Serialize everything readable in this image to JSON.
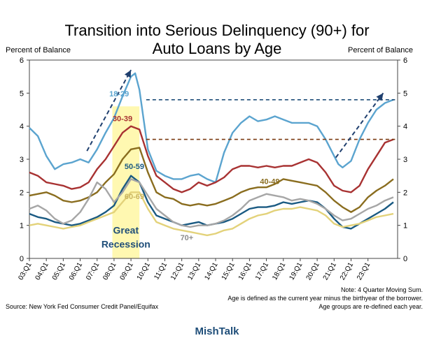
{
  "chart_data": {
    "type": "line",
    "title_line1": "Transition into Serious Delinquency (90+) for",
    "title_line2": "Auto Loans by Age",
    "ylabel_left": "Percent of Balance",
    "ylabel_right": "Percent of Balance",
    "ylim": [
      0,
      6
    ],
    "yticks": [
      "0",
      "1",
      "2",
      "3",
      "4",
      "5",
      "6"
    ],
    "xlim": [
      2003,
      2024.75
    ],
    "xticks": [
      {
        "x": 2003,
        "label": "03:Q1"
      },
      {
        "x": 2004,
        "label": "04:Q1"
      },
      {
        "x": 2005,
        "label": "05:Q1"
      },
      {
        "x": 2006,
        "label": "06:Q1"
      },
      {
        "x": 2007,
        "label": "07:Q1"
      },
      {
        "x": 2008,
        "label": "08:Q1"
      },
      {
        "x": 2009,
        "label": "09:Q1"
      },
      {
        "x": 2010,
        "label": "10:Q1"
      },
      {
        "x": 2011,
        "label": "11:Q1"
      },
      {
        "x": 2012,
        "label": "12:Q1"
      },
      {
        "x": 2013,
        "label": "13:Q1"
      },
      {
        "x": 2014,
        "label": "14:Q1"
      },
      {
        "x": 2015,
        "label": "15:Q1"
      },
      {
        "x": 2016,
        "label": "16:Q1"
      },
      {
        "x": 2017,
        "label": "17:Q1"
      },
      {
        "x": 2018,
        "label": "18:Q1"
      },
      {
        "x": 2019,
        "label": "19:Q1"
      },
      {
        "x": 2020,
        "label": "20:Q1"
      },
      {
        "x": 2021,
        "label": "21:Q1"
      },
      {
        "x": 2022,
        "label": "22:Q1"
      },
      {
        "x": 2023,
        "label": "23:Q1"
      }
    ],
    "recession": {
      "x0": 2007.9,
      "x1": 2009.5,
      "label_line1": "Great",
      "label_line2": "Recession"
    },
    "series": [
      {
        "name": "18-29",
        "color": "#5ba4cf",
        "x": [
          2003.0,
          2003.5,
          2004.0,
          2004.5,
          2005.0,
          2005.5,
          2006.0,
          2006.5,
          2007.0,
          2007.5,
          2008.0,
          2008.5,
          2009.0,
          2009.25,
          2009.5,
          2009.75,
          2010.0,
          2010.5,
          2011.0,
          2011.5,
          2012.0,
          2012.5,
          2013.0,
          2013.5,
          2014.0,
          2014.5,
          2015.0,
          2015.5,
          2016.0,
          2016.5,
          2017.0,
          2017.5,
          2018.0,
          2018.5,
          2019.0,
          2019.5,
          2020.0,
          2020.5,
          2021.0,
          2021.25,
          2021.5,
          2022.0,
          2022.5,
          2023.0,
          2023.5,
          2024.0,
          2024.5
        ],
        "values": [
          3.95,
          3.7,
          3.1,
          2.7,
          2.85,
          2.9,
          3.0,
          2.9,
          3.3,
          3.8,
          4.25,
          4.9,
          5.5,
          5.6,
          5.1,
          4.2,
          3.3,
          2.65,
          2.5,
          2.4,
          2.4,
          2.5,
          2.55,
          2.4,
          2.3,
          3.2,
          3.8,
          4.1,
          4.3,
          4.15,
          4.2,
          4.3,
          4.2,
          4.1,
          4.1,
          4.1,
          4.0,
          3.6,
          3.1,
          2.85,
          2.75,
          2.95,
          3.6,
          4.1,
          4.5,
          4.7,
          4.8
        ]
      },
      {
        "name": "30-39",
        "color": "#a83232",
        "x": [
          2003.0,
          2003.5,
          2004.0,
          2004.5,
          2005.0,
          2005.5,
          2006.0,
          2006.5,
          2007.0,
          2007.5,
          2008.0,
          2008.5,
          2009.0,
          2009.5,
          2010.0,
          2010.5,
          2011.0,
          2011.5,
          2012.0,
          2012.5,
          2013.0,
          2013.5,
          2014.0,
          2014.5,
          2015.0,
          2015.5,
          2016.0,
          2016.5,
          2017.0,
          2017.5,
          2018.0,
          2018.5,
          2019.0,
          2019.5,
          2020.0,
          2020.5,
          2021.0,
          2021.5,
          2022.0,
          2022.5,
          2023.0,
          2023.5,
          2024.0,
          2024.5
        ],
        "values": [
          2.6,
          2.5,
          2.3,
          2.25,
          2.2,
          2.1,
          2.15,
          2.3,
          2.7,
          3.0,
          3.4,
          3.8,
          4.0,
          3.9,
          3.1,
          2.5,
          2.3,
          2.1,
          2.0,
          2.1,
          2.3,
          2.2,
          2.3,
          2.45,
          2.7,
          2.8,
          2.8,
          2.75,
          2.8,
          2.75,
          2.8,
          2.8,
          2.9,
          3.0,
          2.9,
          2.6,
          2.2,
          2.05,
          2.0,
          2.2,
          2.7,
          3.1,
          3.5,
          3.6
        ]
      },
      {
        "name": "40-49",
        "color": "#8a6d1f",
        "x": [
          2003.0,
          2003.5,
          2004.0,
          2004.5,
          2005.0,
          2005.5,
          2006.0,
          2006.5,
          2007.0,
          2007.5,
          2008.0,
          2008.5,
          2009.0,
          2009.5,
          2010.0,
          2010.5,
          2011.0,
          2011.5,
          2012.0,
          2012.5,
          2013.0,
          2013.5,
          2014.0,
          2014.5,
          2015.0,
          2015.5,
          2016.0,
          2016.5,
          2017.0,
          2017.5,
          2018.0,
          2018.5,
          2019.0,
          2019.5,
          2020.0,
          2020.5,
          2021.0,
          2021.5,
          2022.0,
          2022.5,
          2023.0,
          2023.5,
          2024.0,
          2024.5
        ],
        "values": [
          1.9,
          1.95,
          2.0,
          1.9,
          1.75,
          1.7,
          1.75,
          1.85,
          2.0,
          2.3,
          2.55,
          3.0,
          3.3,
          3.35,
          2.6,
          2.0,
          1.85,
          1.8,
          1.65,
          1.6,
          1.65,
          1.6,
          1.65,
          1.75,
          1.85,
          2.0,
          2.1,
          2.15,
          2.15,
          2.25,
          2.4,
          2.35,
          2.3,
          2.25,
          2.2,
          2.0,
          1.75,
          1.55,
          1.4,
          1.55,
          1.85,
          2.05,
          2.2,
          2.4
        ]
      },
      {
        "name": "50-59",
        "color": "#1a5a82",
        "x": [
          2003.0,
          2003.5,
          2004.0,
          2004.5,
          2005.0,
          2005.5,
          2006.0,
          2006.5,
          2007.0,
          2007.5,
          2008.0,
          2008.5,
          2009.0,
          2009.5,
          2010.0,
          2010.5,
          2011.0,
          2011.5,
          2012.0,
          2012.5,
          2013.0,
          2013.5,
          2014.0,
          2014.5,
          2015.0,
          2015.5,
          2016.0,
          2016.5,
          2017.0,
          2017.5,
          2018.0,
          2018.5,
          2019.0,
          2019.5,
          2020.0,
          2020.5,
          2021.0,
          2021.5,
          2022.0,
          2022.5,
          2023.0,
          2023.5,
          2024.0,
          2024.5
        ],
        "values": [
          1.35,
          1.25,
          1.2,
          1.1,
          1.05,
          1.0,
          1.05,
          1.15,
          1.25,
          1.4,
          1.6,
          2.1,
          2.5,
          2.3,
          1.7,
          1.3,
          1.2,
          1.1,
          1.0,
          1.05,
          1.1,
          1.0,
          1.05,
          1.1,
          1.2,
          1.35,
          1.5,
          1.55,
          1.55,
          1.6,
          1.7,
          1.65,
          1.7,
          1.75,
          1.7,
          1.5,
          1.2,
          0.95,
          0.9,
          1.05,
          1.2,
          1.35,
          1.5,
          1.7
        ]
      },
      {
        "name": "60-69",
        "color": "#e3d27a",
        "x": [
          2003.0,
          2003.5,
          2004.0,
          2004.5,
          2005.0,
          2005.5,
          2006.0,
          2006.5,
          2007.0,
          2007.5,
          2008.0,
          2008.5,
          2009.0,
          2009.5,
          2010.0,
          2010.5,
          2011.0,
          2011.5,
          2012.0,
          2012.5,
          2013.0,
          2013.5,
          2014.0,
          2014.5,
          2015.0,
          2015.5,
          2016.0,
          2016.5,
          2017.0,
          2017.5,
          2018.0,
          2018.5,
          2019.0,
          2019.5,
          2020.0,
          2020.5,
          2021.0,
          2021.5,
          2022.0,
          2022.5,
          2023.0,
          2023.5,
          2024.0,
          2024.5
        ],
        "values": [
          1.0,
          1.05,
          1.0,
          0.95,
          0.9,
          0.95,
          1.0,
          1.1,
          1.2,
          1.3,
          1.4,
          1.7,
          2.0,
          2.0,
          1.5,
          1.1,
          1.0,
          0.9,
          0.85,
          0.8,
          0.75,
          0.7,
          0.75,
          0.85,
          0.9,
          1.05,
          1.2,
          1.3,
          1.35,
          1.45,
          1.5,
          1.5,
          1.55,
          1.5,
          1.45,
          1.3,
          1.05,
          0.95,
          1.0,
          1.05,
          1.15,
          1.25,
          1.3,
          1.35
        ]
      },
      {
        "name": "70+",
        "color": "#a6a6a6",
        "x": [
          2003.0,
          2003.5,
          2004.0,
          2004.5,
          2005.0,
          2005.5,
          2006.0,
          2006.5,
          2007.0,
          2007.5,
          2008.0,
          2008.5,
          2009.0,
          2009.5,
          2010.0,
          2010.5,
          2011.0,
          2011.5,
          2012.0,
          2012.5,
          2013.0,
          2013.5,
          2014.0,
          2014.5,
          2015.0,
          2015.5,
          2016.0,
          2016.5,
          2017.0,
          2017.5,
          2018.0,
          2018.5,
          2019.0,
          2019.5,
          2020.0,
          2020.5,
          2021.0,
          2021.5,
          2022.0,
          2022.5,
          2023.0,
          2023.5,
          2024.0,
          2024.5
        ],
        "values": [
          1.5,
          1.6,
          1.45,
          1.2,
          1.05,
          1.15,
          1.4,
          1.8,
          2.3,
          2.1,
          1.7,
          2.0,
          2.4,
          2.3,
          1.9,
          1.5,
          1.3,
          1.1,
          1.0,
          0.95,
          1.0,
          1.0,
          1.05,
          1.15,
          1.3,
          1.5,
          1.75,
          1.85,
          1.95,
          1.9,
          1.85,
          1.75,
          1.8,
          1.75,
          1.65,
          1.5,
          1.3,
          1.15,
          1.2,
          1.35,
          1.5,
          1.6,
          1.75,
          1.85
        ]
      }
    ],
    "labels": [
      {
        "name": "18-29",
        "x": 2008.3,
        "y": 4.9,
        "color": "#5ba4cf"
      },
      {
        "name": "30-39",
        "x": 2008.5,
        "y": 4.15,
        "color": "#a83232"
      },
      {
        "name": "50-59",
        "x": 2009.2,
        "y": 2.7,
        "color": "#1a5a82"
      },
      {
        "name": "40-49",
        "x": 2017.2,
        "y": 2.25,
        "color": "#8a6d1f"
      },
      {
        "name": "60-69",
        "x": 2009.2,
        "y": 1.8,
        "color": "#c9b560"
      },
      {
        "name": "70+",
        "x": 2012.3,
        "y": 0.55,
        "color": "#8c8c8c"
      }
    ],
    "reference_lines": [
      {
        "name": "peak-18-29",
        "y": 4.8,
        "x0": 2009.9,
        "x1": 2024.6,
        "color": "#1f4e79"
      },
      {
        "name": "peak-30-39",
        "y": 3.6,
        "x0": 2009.9,
        "x1": 2024.6,
        "color": "#7a3a10"
      }
    ],
    "arrows": [
      {
        "name": "arrow-2000s",
        "x0": 2006.4,
        "y0": 3.25,
        "x1": 2009.0,
        "y1": 5.7
      },
      {
        "name": "arrow-2020s",
        "x0": 2021.1,
        "y0": 3.05,
        "x1": 2023.9,
        "y1": 5.0
      }
    ]
  },
  "notes": {
    "note1": "Note: 4 Quarter Moving Sum.",
    "note2": "Age is defined as the current year minus the birthyear of the borrower.",
    "note3": "Age groups are re-defined each year.",
    "source": "Source: New York Fed Consumer Credit Panel/Equifax"
  },
  "brand": "MishTalk"
}
